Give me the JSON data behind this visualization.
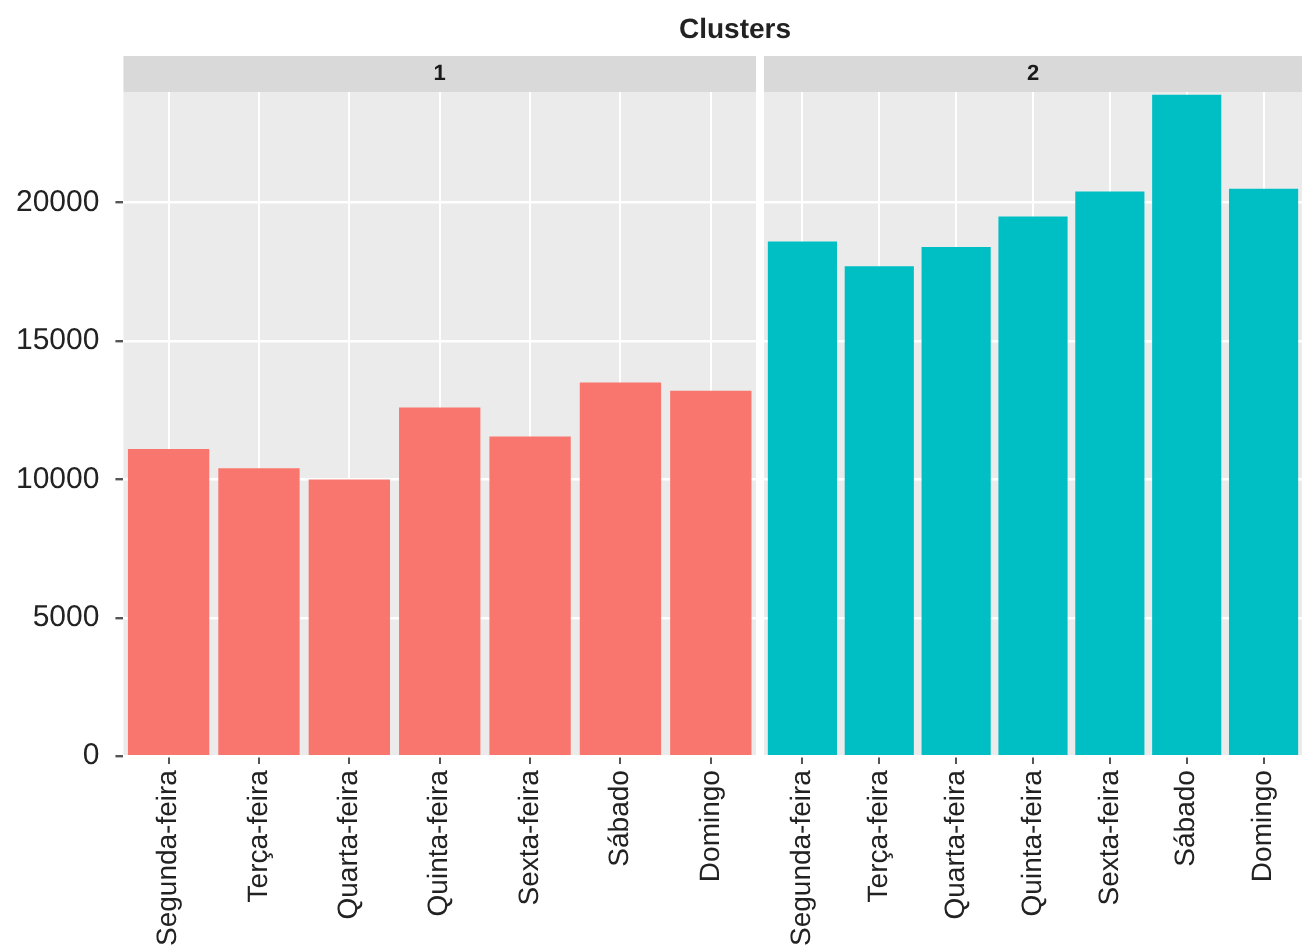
{
  "chart_data": [
    {
      "type": "bar",
      "title": "1",
      "annotations": [
        "Clusters"
      ],
      "categories": [
        "Segunda-feira",
        "Terça-feira",
        "Quarta-feira",
        "Quinta-feira",
        "Sexta-feira",
        "Sábado",
        "Domingo"
      ],
      "values": [
        11100,
        10400,
        10000,
        12600,
        11550,
        13500,
        13200
      ],
      "color": "#f8766d",
      "ylim": [
        0,
        24000
      ],
      "yticks": [
        0,
        5000,
        10000,
        15000,
        20000
      ],
      "grid": true
    },
    {
      "type": "bar",
      "title": "2",
      "categories": [
        "Segunda-feira",
        "Terça-feira",
        "Quarta-feira",
        "Quinta-feira",
        "Sexta-feira",
        "Sábado",
        "Domingo"
      ],
      "values": [
        18600,
        17700,
        18400,
        19500,
        20400,
        23900,
        20500
      ],
      "color": "#00bfc4",
      "ylim": [
        0,
        24000
      ],
      "yticks": [
        0,
        5000,
        10000,
        15000,
        20000
      ],
      "grid": true,
      "tick_labels": "x"
    }
  ]
}
